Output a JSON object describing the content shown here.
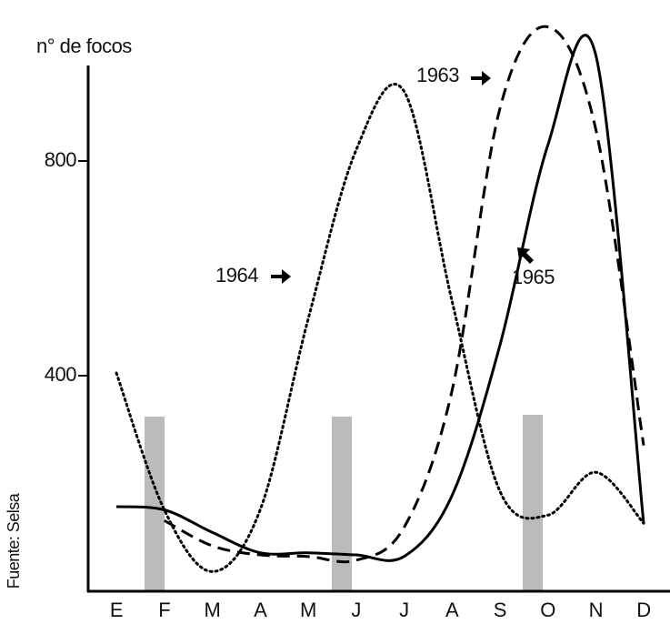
{
  "chart_data": {
    "type": "line",
    "y_label": "n° de focos",
    "source": "Fuente: Selsa",
    "categories": [
      "E",
      "F",
      "M",
      "A",
      "M",
      "J",
      "J",
      "A",
      "S",
      "O",
      "N",
      "D"
    ],
    "series": [
      {
        "name": "1963",
        "color": "#000000",
        "dash": "dashed",
        "values": [
          null,
          130,
          83,
          66,
          63,
          56,
          117,
          371,
          897,
          1050,
          860,
          270
        ]
      },
      {
        "name": "1964",
        "color": "#000000",
        "dash": "dotted",
        "values": [
          405,
          150,
          35,
          150,
          505,
          820,
          930,
          540,
          185,
          140,
          220,
          125
        ]
      },
      {
        "name": "1965",
        "color": "#000000",
        "dash": "solid",
        "values": [
          156,
          150,
          108,
          70,
          70,
          66,
          63,
          176,
          456,
          829,
          998,
          125
        ]
      }
    ],
    "ylim": [
      0,
      1100
    ],
    "yticks": [
      400,
      800
    ]
  }
}
